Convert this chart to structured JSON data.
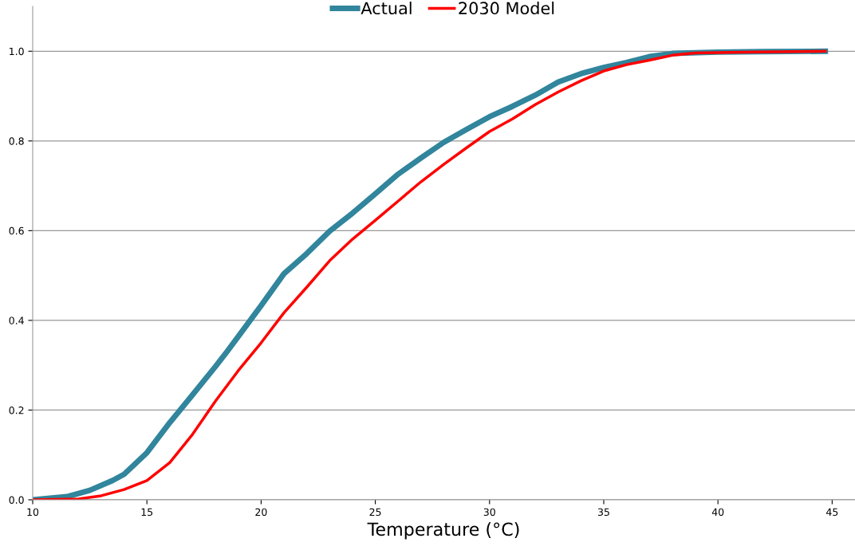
{
  "chart_data": {
    "type": "line",
    "xlabel": "Temperature (°C)",
    "xlim": [
      10,
      46
    ],
    "xticks": [
      10,
      15,
      20,
      25,
      30,
      35,
      40,
      45
    ],
    "ylim": [
      0,
      1.1
    ],
    "yticks": [
      {
        "value": 0,
        "label": "0.0"
      },
      {
        "value": 0.2,
        "label": "0.2"
      },
      {
        "value": 0.4,
        "label": "0.4"
      },
      {
        "value": 0.6,
        "label": "0.6"
      },
      {
        "value": 0.8,
        "label": "0.8"
      },
      {
        "value": 1.0,
        "label": "1.0"
      }
    ],
    "grid": "y",
    "legend": "top",
    "marker": "none",
    "line_style": "solid",
    "series": [
      {
        "name": "Actual",
        "color": "#31859c",
        "x": [
          10,
          11.5,
          12.5,
          13.5,
          14,
          15,
          16,
          17,
          18,
          18.5,
          19,
          20,
          21,
          22,
          23,
          24,
          25,
          26,
          27,
          28,
          29,
          30,
          31,
          32,
          33,
          34,
          35,
          36,
          37,
          38,
          40,
          42,
          44.7
        ],
        "values": [
          0,
          0.007,
          0.021,
          0.043,
          0.057,
          0.105,
          0.172,
          0.234,
          0.297,
          0.33,
          0.364,
          0.433,
          0.504,
          0.549,
          0.599,
          0.639,
          0.682,
          0.726,
          0.762,
          0.797,
          0.826,
          0.854,
          0.877,
          0.902,
          0.931,
          0.95,
          0.964,
          0.975,
          0.988,
          0.995,
          0.998,
          0.999,
          1.0
        ]
      },
      {
        "name": "2030 Model",
        "color": "#ff0000",
        "x": [
          10,
          12,
          13,
          14,
          15,
          16,
          17,
          18,
          19,
          20,
          21,
          22,
          23,
          24,
          25,
          26,
          27,
          28,
          29,
          30,
          31,
          32,
          33,
          34,
          35,
          36,
          37,
          38,
          39,
          41,
          44.7
        ],
        "values": [
          0,
          0.002,
          0.009,
          0.023,
          0.043,
          0.083,
          0.146,
          0.22,
          0.288,
          0.35,
          0.417,
          0.474,
          0.533,
          0.581,
          0.623,
          0.666,
          0.709,
          0.748,
          0.785,
          0.821,
          0.849,
          0.881,
          0.909,
          0.934,
          0.956,
          0.97,
          0.98,
          0.991,
          0.996,
          0.998,
          1.0
        ]
      }
    ]
  }
}
